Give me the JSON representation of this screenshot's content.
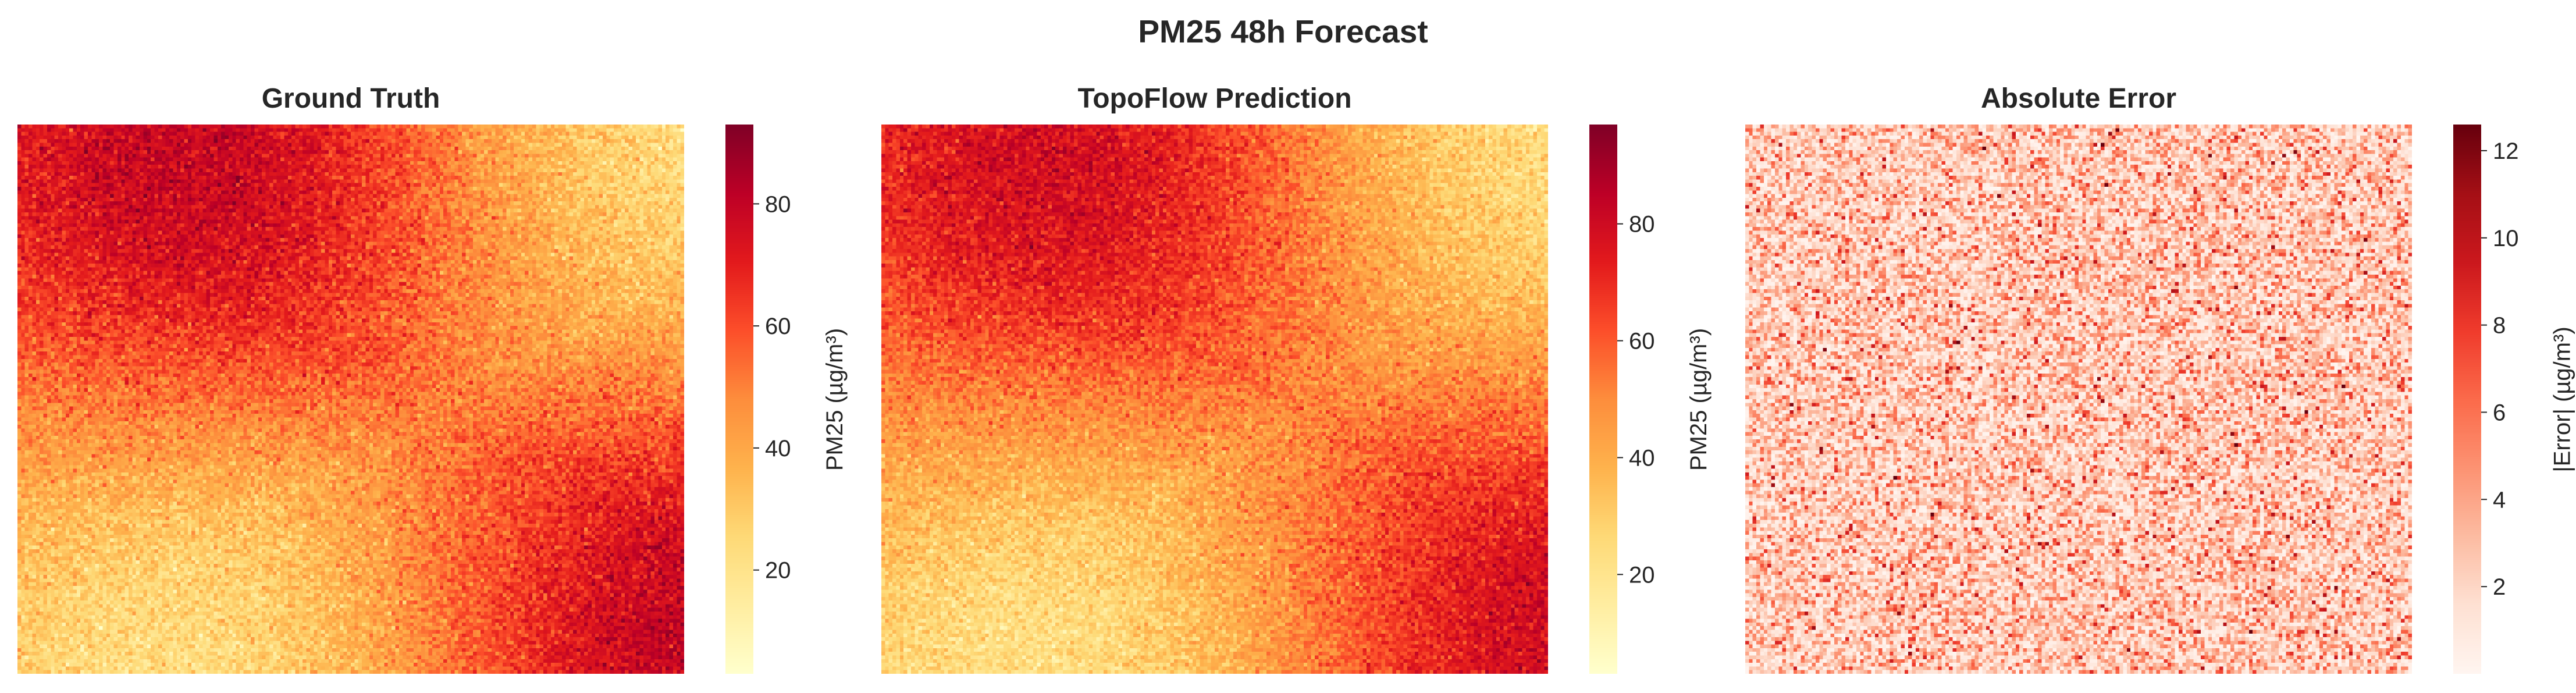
{
  "figure": {
    "suptitle": "PM25 48h Forecast"
  },
  "chart_data": [
    {
      "type": "heatmap",
      "title": "Ground Truth",
      "colormap": "YlOrRd",
      "colorbar_label": "PM25 (µg/m³)",
      "colorbar_range": [
        3,
        93
      ],
      "colorbar_ticks": [
        20,
        40,
        60,
        80
      ],
      "pattern": {
        "hot_spots": [
          [
            0.32,
            0.05
          ],
          [
            1.0,
            0.95
          ]
        ],
        "cool_spots": [
          [
            0.95,
            0.0
          ],
          [
            0.28,
            1.0
          ]
        ],
        "noise": 6
      },
      "grid_size": [
        180,
        150
      ]
    },
    {
      "type": "heatmap",
      "title": "TopoFlow Prediction",
      "colormap": "YlOrRd",
      "colorbar_label": "PM25 (µg/m³)",
      "colorbar_range": [
        3,
        97
      ],
      "colorbar_ticks": [
        20,
        40,
        60,
        80
      ],
      "pattern": {
        "hot_spots": [
          [
            0.32,
            0.05
          ],
          [
            1.0,
            0.95
          ]
        ],
        "cool_spots": [
          [
            0.95,
            0.0
          ],
          [
            0.28,
            1.0
          ]
        ],
        "noise": 6
      },
      "grid_size": [
        180,
        150
      ]
    },
    {
      "type": "heatmap",
      "title": "Absolute Error",
      "colormap": "Reds",
      "colorbar_label": "|Error| (µg/m³)",
      "colorbar_range": [
        0,
        12.6
      ],
      "colorbar_ticks": [
        2,
        4,
        6,
        8,
        10,
        12
      ],
      "pattern": {
        "random_error_mean": 3.2
      },
      "grid_size": [
        180,
        150
      ]
    }
  ]
}
